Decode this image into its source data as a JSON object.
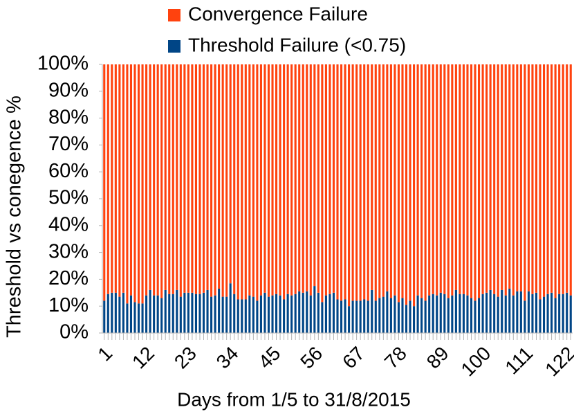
{
  "chart_data": {
    "type": "stacked_bar_100",
    "x_label": "Days from 1/5 to 31/8/2015",
    "y_label": "Threshold vs conegence %",
    "legend": "top",
    "categories": [
      "1",
      null,
      null,
      null,
      null,
      null,
      null,
      null,
      null,
      null,
      null,
      "12",
      null,
      null,
      null,
      null,
      null,
      null,
      null,
      null,
      null,
      null,
      "23",
      null,
      null,
      null,
      null,
      null,
      null,
      null,
      null,
      null,
      null,
      "34",
      null,
      null,
      null,
      null,
      null,
      null,
      null,
      null,
      null,
      null,
      "45",
      null,
      null,
      null,
      null,
      null,
      null,
      null,
      null,
      null,
      null,
      "56",
      null,
      null,
      null,
      null,
      null,
      null,
      null,
      null,
      null,
      null,
      "67",
      null,
      null,
      null,
      null,
      null,
      null,
      null,
      null,
      null,
      null,
      "78",
      null,
      null,
      null,
      null,
      null,
      null,
      null,
      null,
      null,
      null,
      "89",
      null,
      null,
      null,
      null,
      null,
      null,
      null,
      null,
      null,
      null,
      "100",
      null,
      null,
      null,
      null,
      null,
      null,
      null,
      null,
      null,
      null,
      "111",
      null,
      null,
      null,
      null,
      null,
      null,
      null,
      null,
      null,
      null,
      "122",
      null
    ],
    "series": [
      {
        "name": "Convergence Failure",
        "color": "#ff420e",
        "values": [
          88,
          85.5,
          85,
          85,
          86.5,
          85,
          89,
          86,
          88.5,
          89,
          89,
          86,
          84,
          86,
          86,
          87,
          84,
          85.5,
          85.5,
          84,
          86.5,
          85,
          85,
          85,
          85.5,
          85.5,
          85,
          84,
          86.5,
          86,
          83.5,
          86.5,
          86.5,
          81.5,
          85.5,
          87.5,
          87.5,
          87.5,
          86,
          86.5,
          88,
          86,
          85,
          86.5,
          86,
          85.5,
          86,
          87.5,
          85.5,
          86,
          85.5,
          84.5,
          85,
          84.5,
          86,
          82.5,
          85,
          88.5,
          86,
          85.5,
          85,
          87.5,
          88,
          87.5,
          90,
          88,
          88,
          88,
          87.5,
          88,
          84,
          88,
          87,
          86.5,
          84.5,
          87,
          86,
          88.5,
          87,
          89.5,
          88,
          90,
          86,
          87,
          88,
          86,
          85.5,
          86,
          85,
          85.5,
          87,
          86,
          84,
          85.5,
          85.5,
          86,
          87,
          88,
          87,
          85.5,
          85,
          84,
          85.5,
          86.5,
          84,
          86,
          83.5,
          86,
          84.5,
          84.5,
          88,
          84.5,
          85.5,
          85,
          87.5,
          86.5,
          85.5,
          85,
          87,
          85.5,
          85.5,
          85,
          86
        ]
      },
      {
        "name": "Threshold Failure (<0.75)",
        "color": "#004586",
        "values": [
          12,
          14.5,
          15,
          15,
          13.5,
          15,
          11,
          14,
          11.5,
          11,
          11,
          14,
          16,
          14,
          14,
          13,
          16,
          14.5,
          14.5,
          16,
          13.5,
          15,
          15,
          15,
          14.5,
          14.5,
          15,
          16,
          13.5,
          14,
          16.5,
          13.5,
          13.5,
          18.5,
          14.5,
          12.5,
          12.5,
          12.5,
          14,
          13.5,
          12,
          14,
          15,
          13.5,
          14,
          14.5,
          14,
          12.5,
          14.5,
          14,
          14.5,
          15.5,
          15,
          15.5,
          14,
          17.5,
          15,
          11.5,
          14,
          14.5,
          15,
          12.5,
          12,
          12.5,
          10,
          12,
          12,
          12,
          12.5,
          12,
          16,
          12,
          13,
          13.5,
          15.5,
          13,
          14,
          11.5,
          13,
          10.5,
          12,
          10,
          14,
          13,
          12,
          14,
          14.5,
          14,
          15,
          14.5,
          13,
          14,
          16,
          14.5,
          14.5,
          14,
          13,
          12,
          13,
          14.5,
          15,
          16,
          14.5,
          13.5,
          16,
          14,
          16.5,
          14,
          15.5,
          15.5,
          12,
          15.5,
          14.5,
          15,
          12.5,
          13.5,
          14.5,
          15,
          13,
          14.5,
          14.5,
          15,
          14
        ]
      }
    ],
    "ylim": [
      0,
      100
    ],
    "yticks": [
      {
        "value": 0,
        "label": "0%"
      },
      {
        "value": 10,
        "label": "10%"
      },
      {
        "value": 20,
        "label": "20%"
      },
      {
        "value": 30,
        "label": "30%"
      },
      {
        "value": 40,
        "label": "40%"
      },
      {
        "value": 50,
        "label": "50%"
      },
      {
        "value": 60,
        "label": "60%"
      },
      {
        "value": 70,
        "label": "70%"
      },
      {
        "value": 80,
        "label": "80%"
      },
      {
        "value": 90,
        "label": "90%"
      },
      {
        "value": 100,
        "label": "100%"
      }
    ],
    "grid": false
  }
}
